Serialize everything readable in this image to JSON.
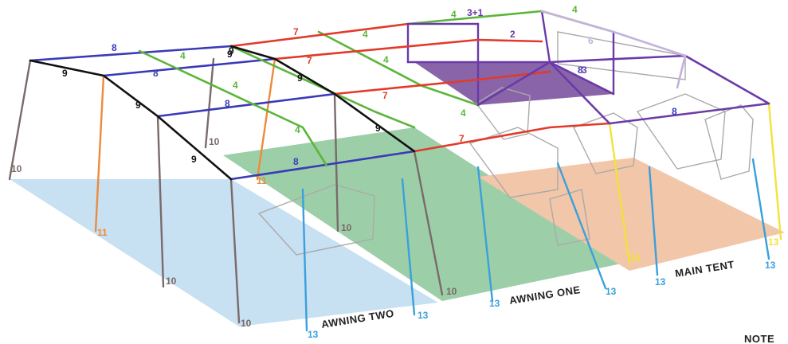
{
  "colors": {
    "awning_two_floor": "#c7e0f2",
    "awning_one_floor": "#9ccfa8",
    "main_tent_floor": "#f2c6a8",
    "upper_roof_fill": "#8a64a8",
    "pole_blue": "#3a3ab8",
    "pole_green": "#5cb53a",
    "pole_red": "#e23a2a",
    "pole_purple": "#6a3aa8",
    "pole_lavender": "#c4b2dc",
    "pole_black": "#111111",
    "pole_grey": "#7a6a6a",
    "pole_orange": "#ee8a3a",
    "pole_cyan": "#3aa0dc",
    "pole_yellow": "#f2e23a",
    "pole_light_grey": "#aaaaaa",
    "label_dark": "#222222"
  },
  "zones": {
    "awning_two": "AWNING TWO",
    "awning_one": "AWNING ONE",
    "main_tent": "MAIN TENT"
  },
  "note": "NOTE",
  "pole_labels": {
    "p8_a": "8",
    "p8_b": "8",
    "p8_c": "8",
    "p8_d": "8",
    "p8_e": "8",
    "p8_f": "8",
    "p4_a": "4",
    "p4_b": "4",
    "p4_c": "4",
    "p4_d": "4",
    "p4_e": "4",
    "p4_f": "4",
    "p4_g": "4",
    "p4_h": "4",
    "p7_a": "7",
    "p7_b": "7",
    "p7_c": "7",
    "p7_d": "7",
    "p9_a": "9",
    "p9_b": "9",
    "p9_c": "9",
    "p9_d": "9",
    "p9_e": "9",
    "p9_f": "9",
    "p9_g": "9",
    "p2": "2",
    "p3": "3",
    "p3x1": "3+1",
    "p10_a": "10",
    "p10_b": "10",
    "p10_c": "10",
    "p10_d": "10",
    "p10_e": "10",
    "p10_f": "10",
    "p10_g": "10",
    "p11_a": "11",
    "p11_b": "11",
    "p13_a": "13",
    "p13_b": "13",
    "p13_c": "13",
    "p13_d": "13",
    "p13_e": "13",
    "p13_f": "13",
    "p13_g": "13",
    "p6": "6"
  }
}
